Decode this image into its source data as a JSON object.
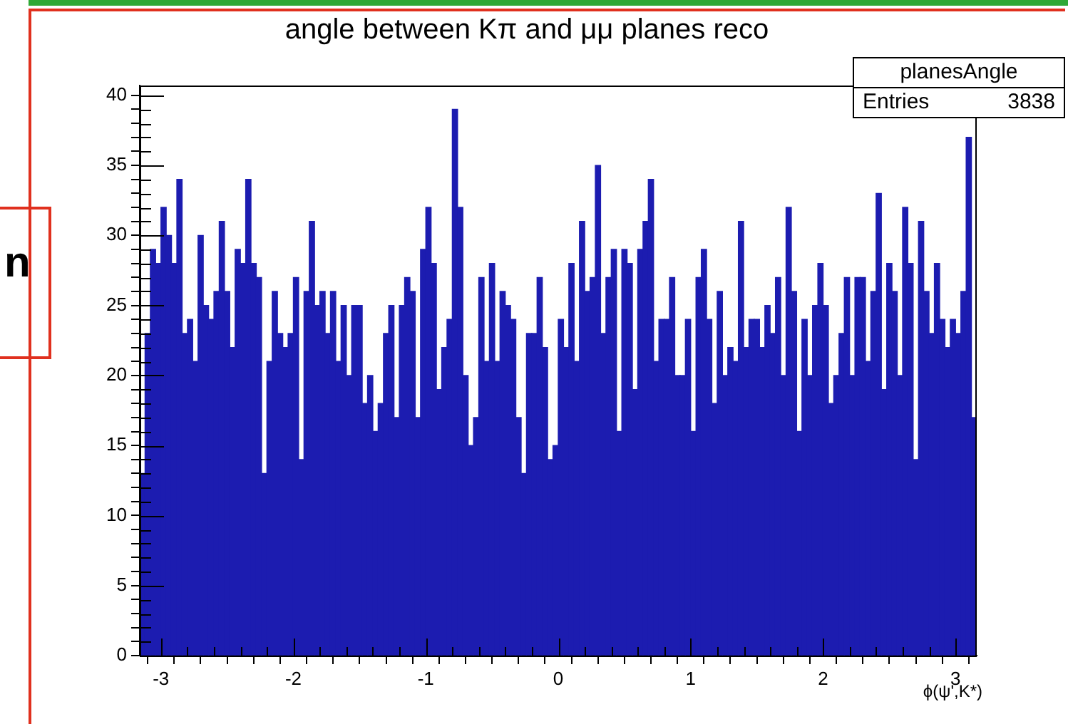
{
  "chart_data": {
    "type": "histogram",
    "title": "angle between Kπ and μμ planes reco",
    "xlabel": "ϕ(ψ',K*)",
    "annotations": [
      "planesAngle",
      "Entries",
      "3838",
      "n"
    ],
    "color": "#1c1cb0",
    "bins": [
      -3.16,
      -3.12,
      -3.08,
      -3.04,
      -3,
      -2.96,
      -2.92,
      -2.88,
      -2.84,
      -2.8,
      -2.76,
      -2.72,
      -2.68,
      -2.64,
      -2.6,
      -2.56,
      -2.52,
      -2.48,
      -2.44,
      -2.4,
      -2.36,
      -2.32,
      -2.28,
      -2.24,
      -2.2,
      -2.16,
      -2.12,
      -2.08,
      -2.04,
      -2,
      -1.96,
      -1.92,
      -1.88,
      -1.84,
      -1.8,
      -1.76,
      -1.72,
      -1.68,
      -1.64,
      -1.6,
      -1.56,
      -1.52,
      -1.48,
      -1.44,
      -1.4,
      -1.36,
      -1.32,
      -1.28,
      -1.24,
      -1.2,
      -1.16,
      -1.12,
      -1.08,
      -1.04,
      -1,
      -0.96,
      -0.92,
      -0.88,
      -0.84,
      -0.8,
      -0.76,
      -0.72,
      -0.68,
      -0.64,
      -0.6,
      -0.56,
      -0.52,
      -0.48,
      -0.44,
      -0.4,
      -0.36,
      -0.32,
      -0.28,
      -0.24,
      -0.2,
      -0.16,
      -0.12,
      -0.08,
      -0.04,
      0,
      0.04,
      0.08,
      0.12,
      0.16,
      0.2,
      0.24,
      0.28,
      0.32,
      0.36,
      0.4,
      0.44,
      0.48,
      0.52,
      0.56,
      0.6,
      0.64,
      0.68,
      0.72,
      0.76,
      0.8,
      0.84,
      0.88,
      0.92,
      0.96,
      1,
      1.04,
      1.08,
      1.12,
      1.16,
      1.2,
      1.24,
      1.28,
      1.32,
      1.36,
      1.4,
      1.44,
      1.48,
      1.52,
      1.56,
      1.6,
      1.64,
      1.68,
      1.72,
      1.76,
      1.8,
      1.84,
      1.88,
      1.92,
      1.96,
      2,
      2.04,
      2.08,
      2.12,
      2.16,
      2.2,
      2.24,
      2.28,
      2.32,
      2.36,
      2.4,
      2.44,
      2.48,
      2.52,
      2.56,
      2.6,
      2.64,
      2.68,
      2.72,
      2.76,
      2.8,
      2.84,
      2.88,
      2.92,
      2.96,
      3,
      3.04,
      3.08,
      3.12,
      3.16
    ],
    "values": [
      13,
      23,
      29,
      28,
      32,
      30,
      28,
      34,
      23,
      24,
      21,
      30,
      25,
      24,
      26,
      31,
      26,
      22,
      29,
      28,
      34,
      28,
      27,
      13,
      21,
      26,
      23,
      22,
      23,
      27,
      14,
      26,
      31,
      25,
      26,
      23,
      26,
      21,
      25,
      20,
      25,
      25,
      18,
      20,
      16,
      18,
      23,
      25,
      17,
      25,
      27,
      26,
      17,
      29,
      32,
      28,
      19,
      22,
      24,
      39,
      32,
      20,
      15,
      17,
      27,
      21,
      28,
      21,
      26,
      25,
      24,
      17,
      13,
      23,
      23,
      27,
      22,
      14,
      15,
      24,
      22,
      28,
      21,
      31,
      26,
      27,
      35,
      23,
      27,
      29,
      16,
      29,
      28,
      19,
      29,
      31,
      34,
      21,
      24,
      24,
      27,
      20,
      20,
      24,
      16,
      27,
      29,
      24,
      18,
      26,
      20,
      22,
      21,
      31,
      22,
      24,
      24,
      22,
      25,
      23,
      27,
      20,
      32,
      26,
      16,
      24,
      20,
      25,
      28,
      25,
      18,
      20,
      23,
      27,
      20,
      27,
      27,
      21,
      26,
      33,
      19,
      28,
      26,
      20,
      32,
      28,
      14,
      31,
      26,
      23,
      28,
      24,
      22,
      24,
      23,
      26,
      37,
      17
    ],
    "xlim": [
      -3.16,
      3.16
    ],
    "xticks": [
      -3,
      {
        "value": -2.8,
        "label": null
      },
      {
        "value": -2.6,
        "label": null
      },
      {
        "value": -2.4,
        "label": null
      },
      {
        "value": -2.2,
        "label": null
      },
      -2,
      {
        "value": -1.8,
        "label": null
      },
      {
        "value": -1.6,
        "label": null
      },
      {
        "value": -1.4,
        "label": null
      },
      {
        "value": -1.2,
        "label": null
      },
      -1,
      {
        "value": -0.8,
        "label": null
      },
      {
        "value": -0.6,
        "label": null
      },
      {
        "value": -0.4,
        "label": null
      },
      {
        "value": -0.2,
        "label": null
      },
      0,
      {
        "value": 0.2,
        "label": null
      },
      {
        "value": 0.4,
        "label": null
      },
      {
        "value": 0.6,
        "label": null
      },
      {
        "value": 0.8,
        "label": null
      },
      1,
      {
        "value": 1.2,
        "label": null
      },
      {
        "value": 1.4,
        "label": null
      },
      {
        "value": 1.6,
        "label": null
      },
      {
        "value": 1.8,
        "label": null
      },
      2,
      {
        "value": 2.2,
        "label": null
      },
      {
        "value": 2.4,
        "label": null
      },
      {
        "value": 2.6,
        "label": null
      },
      {
        "value": 2.8,
        "label": null
      },
      3
    ],
    "ylim": [
      0,
      40.7
    ],
    "yticks": [
      0,
      {
        "value": 1,
        "label": null
      },
      {
        "value": 2,
        "label": null
      },
      {
        "value": 3,
        "label": null
      },
      {
        "value": 4,
        "label": null
      },
      5,
      {
        "value": 6,
        "label": null
      },
      {
        "value": 7,
        "label": null
      },
      {
        "value": 8,
        "label": null
      },
      {
        "value": 9,
        "label": null
      },
      10,
      {
        "value": 11,
        "label": null
      },
      {
        "value": 12,
        "label": null
      },
      {
        "value": 13,
        "label": null
      },
      {
        "value": 14,
        "label": null
      },
      15,
      {
        "value": 16,
        "label": null
      },
      {
        "value": 17,
        "label": null
      },
      {
        "value": 18,
        "label": null
      },
      {
        "value": 19,
        "label": null
      },
      20,
      {
        "value": 21,
        "label": null
      },
      {
        "value": 22,
        "label": null
      },
      {
        "value": 23,
        "label": null
      },
      {
        "value": 24,
        "label": null
      },
      25,
      {
        "value": 26,
        "label": null
      },
      {
        "value": 27,
        "label": null
      },
      {
        "value": 28,
        "label": null
      },
      {
        "value": 29,
        "label": null
      },
      30,
      {
        "value": 31,
        "label": null
      },
      {
        "value": 32,
        "label": null
      },
      {
        "value": 33,
        "label": null
      },
      {
        "value": 34,
        "label": null
      },
      35,
      {
        "value": 36,
        "label": null
      },
      {
        "value": 37,
        "label": null
      },
      {
        "value": 38,
        "label": null
      },
      {
        "value": 39,
        "label": null
      },
      40
    ]
  }
}
